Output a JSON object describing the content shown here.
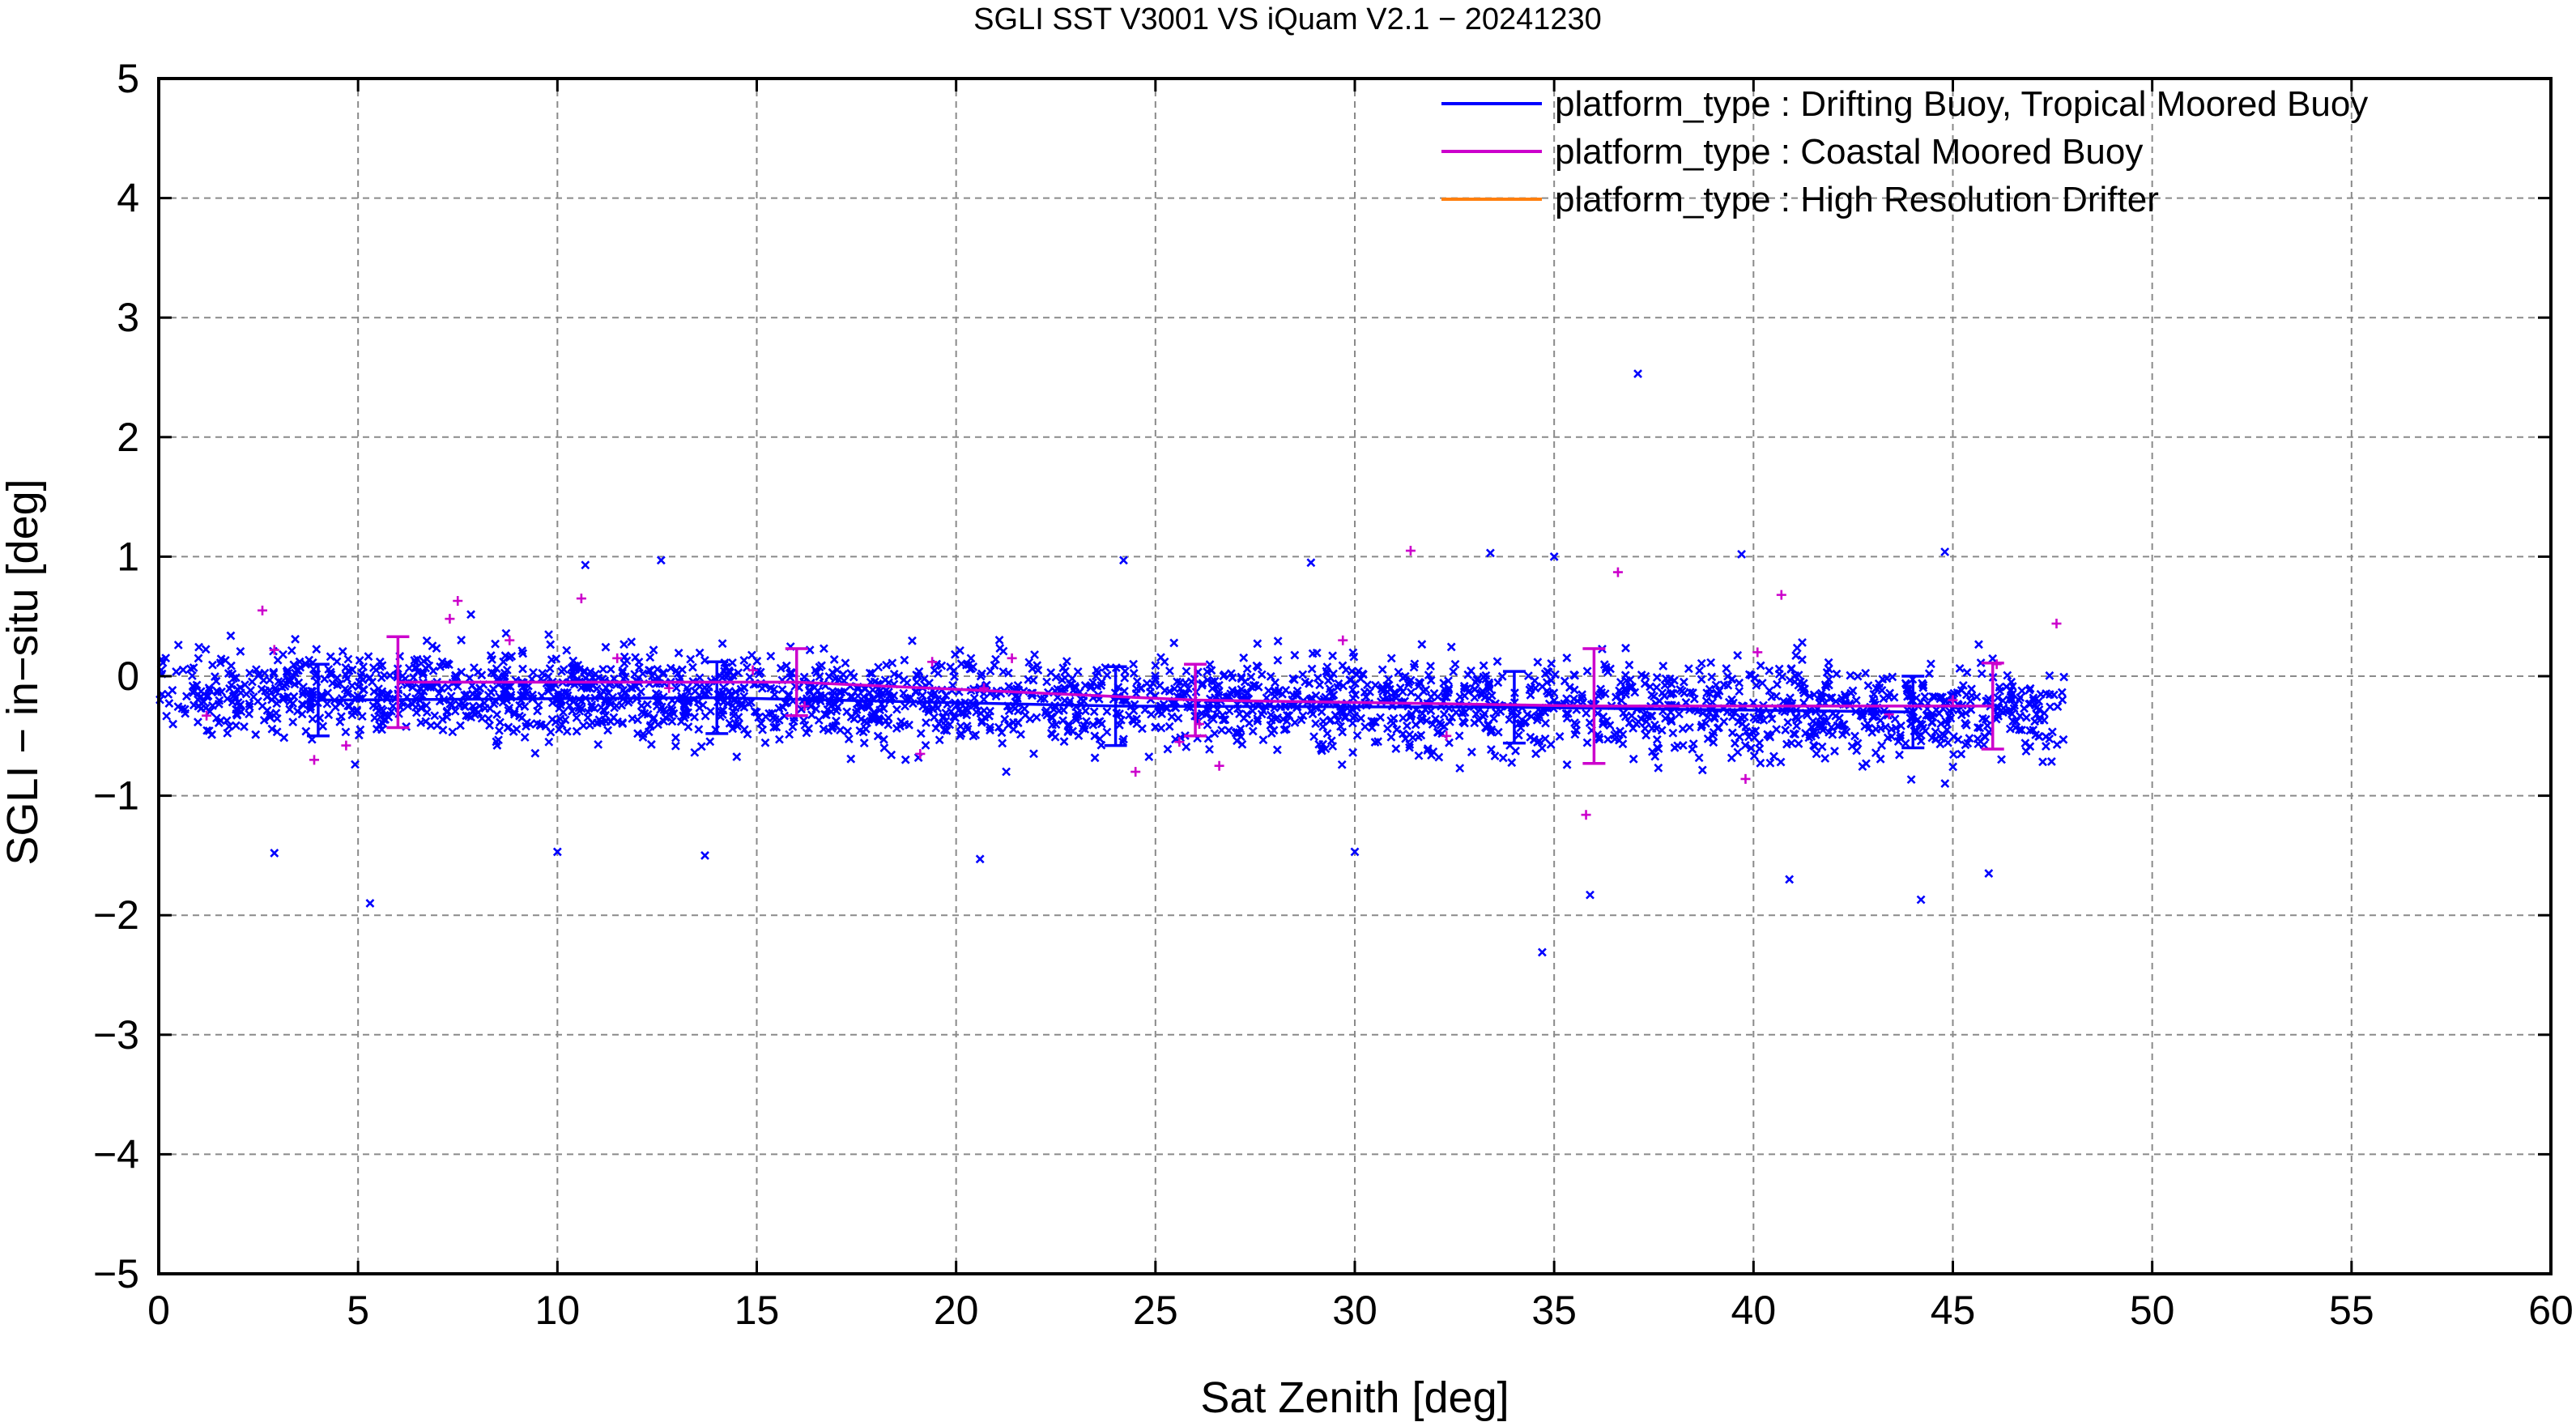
{
  "chart_data": {
    "type": "scatter",
    "title": "SGLI SST V3001 VS iQuam V2.1  − 20241230",
    "xlabel": "Sat Zenith [deg]",
    "ylabel": "SGLI − in−situ [deg]",
    "xlim": [
      0,
      60
    ],
    "ylim": [
      -5,
      5
    ],
    "xticks": [
      "0",
      "5",
      "10",
      "15",
      "20",
      "25",
      "30",
      "35",
      "40",
      "45",
      "50",
      "55",
      "60"
    ],
    "yticks": [
      "−5",
      "−4",
      "−3",
      "−2",
      "−1",
      "0",
      "1",
      "2",
      "3",
      "4",
      "5"
    ],
    "grid": true,
    "legend_position": "top-right",
    "series": [
      {
        "name": "platform_type : Drifting Buoy, Tropical Moored Buoy",
        "color": "#0000ff",
        "marker": "x",
        "x_range": [
          0,
          47.8
        ],
        "y_center": -0.25,
        "y_spread": 0.3,
        "point_count": 2600,
        "outliers": [
          {
            "x": 37.1,
            "y": 2.53
          },
          {
            "x": 34.7,
            "y": -2.31
          },
          {
            "x": 5.3,
            "y": -1.9
          },
          {
            "x": 2.9,
            "y": -1.48
          },
          {
            "x": 13.7,
            "y": -1.5
          },
          {
            "x": 10.0,
            "y": -1.47
          },
          {
            "x": 20.6,
            "y": -1.53
          },
          {
            "x": 30.0,
            "y": -1.47
          },
          {
            "x": 35.9,
            "y": -1.83
          },
          {
            "x": 44.2,
            "y": -1.87
          },
          {
            "x": 40.9,
            "y": -1.7
          },
          {
            "x": 45.9,
            "y": -1.65
          },
          {
            "x": 44.8,
            "y": 1.04
          },
          {
            "x": 33.4,
            "y": 1.03
          },
          {
            "x": 39.7,
            "y": 1.02
          },
          {
            "x": 35.0,
            "y": 1.0
          },
          {
            "x": 12.6,
            "y": 0.97
          },
          {
            "x": 24.2,
            "y": 0.97
          },
          {
            "x": 28.9,
            "y": 0.95
          },
          {
            "x": 10.7,
            "y": 0.93
          }
        ],
        "mean_line": {
          "x": [
            4,
            14,
            24,
            34,
            44
          ],
          "y": [
            -0.2,
            -0.18,
            -0.25,
            -0.26,
            -0.3
          ],
          "err": [
            0.3,
            0.3,
            0.33,
            0.3,
            0.3
          ]
        }
      },
      {
        "name": "platform_type : Coastal Moored Buoy",
        "color": "#cc00cc",
        "marker": "+",
        "points": [
          {
            "x": 1.2,
            "y": -0.33
          },
          {
            "x": 2.6,
            "y": 0.55
          },
          {
            "x": 2.9,
            "y": 0.22
          },
          {
            "x": 3.9,
            "y": -0.7
          },
          {
            "x": 4.7,
            "y": -0.58
          },
          {
            "x": 7.5,
            "y": 0.63
          },
          {
            "x": 7.3,
            "y": 0.48
          },
          {
            "x": 8.8,
            "y": 0.3
          },
          {
            "x": 10.6,
            "y": 0.65
          },
          {
            "x": 11.5,
            "y": 0.15
          },
          {
            "x": 12.8,
            "y": -0.1
          },
          {
            "x": 14.9,
            "y": 0.05
          },
          {
            "x": 16.2,
            "y": -0.25
          },
          {
            "x": 19.1,
            "y": -0.65
          },
          {
            "x": 19.4,
            "y": 0.12
          },
          {
            "x": 20.7,
            "y": -0.1
          },
          {
            "x": 21.4,
            "y": 0.15
          },
          {
            "x": 24.5,
            "y": -0.8
          },
          {
            "x": 25.6,
            "y": -0.55
          },
          {
            "x": 26.1,
            "y": -0.4
          },
          {
            "x": 26.6,
            "y": -0.75
          },
          {
            "x": 29.7,
            "y": 0.3
          },
          {
            "x": 31.4,
            "y": 1.05
          },
          {
            "x": 32.3,
            "y": -0.5
          },
          {
            "x": 35.8,
            "y": -1.16
          },
          {
            "x": 36.6,
            "y": 0.87
          },
          {
            "x": 40.1,
            "y": 0.2
          },
          {
            "x": 40.7,
            "y": 0.68
          },
          {
            "x": 39.8,
            "y": -0.86
          },
          {
            "x": 43.4,
            "y": -0.32
          },
          {
            "x": 46.1,
            "y": 0.1
          },
          {
            "x": 47.6,
            "y": 0.44
          },
          {
            "x": 45.0,
            "y": -0.2
          }
        ],
        "mean_line": {
          "x": [
            6,
            16,
            26,
            36,
            46
          ],
          "y": [
            -0.05,
            -0.05,
            -0.2,
            -0.25,
            -0.25
          ],
          "err": [
            0.38,
            0.28,
            0.3,
            0.48,
            0.36
          ]
        }
      },
      {
        "name": "platform_type : High Resolution Drifter",
        "color": "#ff7f0e",
        "marker": "+",
        "points": []
      }
    ]
  }
}
